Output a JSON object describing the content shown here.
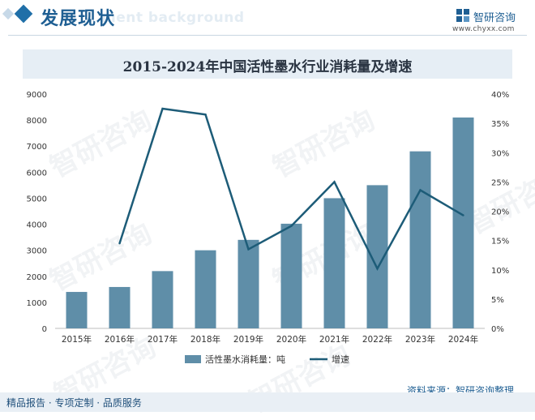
{
  "header": {
    "title": "发展现状",
    "ghost_text": "ment background",
    "logo_name": "智研咨询",
    "site": "www.chyxx.com"
  },
  "watermark_text": "智研咨询",
  "chart_data": {
    "type": "bar+line",
    "title": "2015-2024年中国活性墨水行业消耗量及增速",
    "categories": [
      "2015年",
      "2016年",
      "2017年",
      "2018年",
      "2019年",
      "2020年",
      "2021年",
      "2022年",
      "2023年",
      "2024年"
    ],
    "series": [
      {
        "name": "活性墨水消耗量：吨",
        "type": "bar",
        "axis": "left",
        "color": "#5f8ea8",
        "values": [
          1400,
          1590,
          2200,
          3000,
          3400,
          4020,
          5000,
          5500,
          6800,
          8100
        ]
      },
      {
        "name": "增速",
        "type": "line",
        "axis": "right",
        "color": "#1d5c78",
        "values": [
          null,
          14.5,
          37.5,
          36.5,
          13.5,
          17.5,
          25.0,
          10.2,
          23.6,
          19.3
        ]
      }
    ],
    "y_left": {
      "min": 0,
      "max": 9000,
      "ticks": [
        0,
        1000,
        2000,
        3000,
        4000,
        5000,
        6000,
        7000,
        8000,
        9000
      ]
    },
    "y_right": {
      "min": 0,
      "max": 40,
      "ticks": [
        "0%",
        "5%",
        "10%",
        "15%",
        "20%",
        "25%",
        "30%",
        "35%",
        "40%"
      ]
    },
    "legend_position": "bottom"
  },
  "source": "资料来源：智研咨询整理",
  "footer": "精品报告 · 专项定制 · 品质服务"
}
